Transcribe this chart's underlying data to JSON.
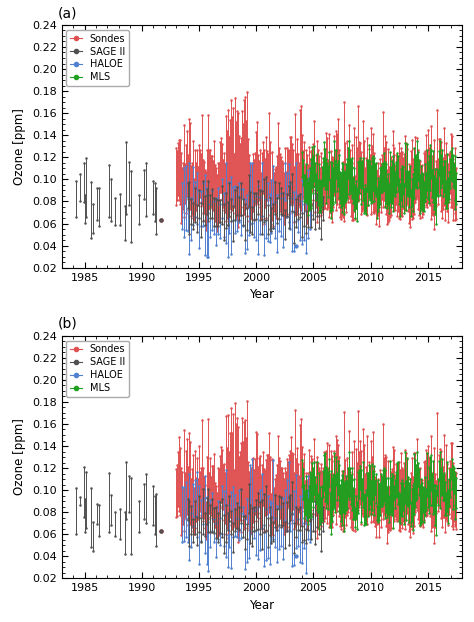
{
  "title_a": "(a)",
  "title_b": "(b)",
  "ylabel": "Ozone [ppm]",
  "xlabel": "Year",
  "ylim": [
    0.02,
    0.24
  ],
  "yticks": [
    0.02,
    0.04,
    0.06,
    0.08,
    0.1,
    0.12,
    0.14,
    0.16,
    0.18,
    0.2,
    0.22,
    0.24
  ],
  "xlim": [
    1983,
    2018
  ],
  "xticks": [
    1985,
    1990,
    1995,
    2000,
    2005,
    2010,
    2015
  ],
  "colors": {
    "Sondes": "#e05050",
    "SAGE II": "#505050",
    "HALOE": "#5080d0",
    "MLS": "#20a020"
  },
  "figsize": [
    4.74,
    6.22
  ],
  "dpi": 100
}
